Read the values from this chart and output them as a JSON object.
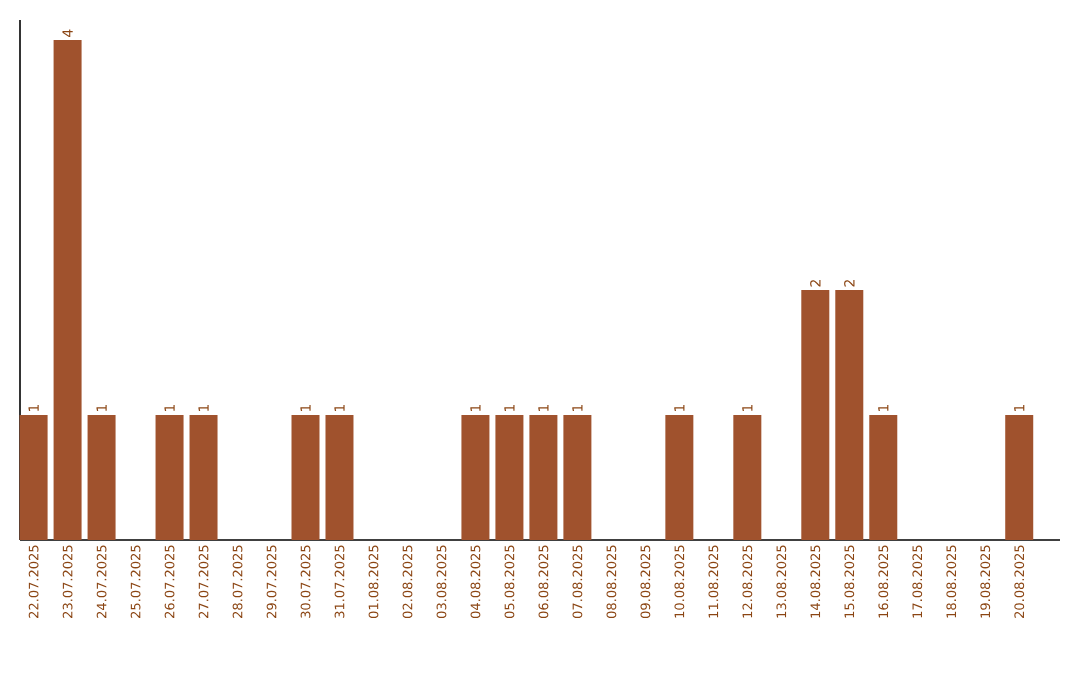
{
  "chart_data": {
    "type": "bar",
    "color": "#a0522d",
    "categories": [
      "22.07.2025",
      "23.07.2025",
      "24.07.2025",
      "25.07.2025",
      "26.07.2025",
      "27.07.2025",
      "28.07.2025",
      "29.07.2025",
      "30.07.2025",
      "31.07.2025",
      "01.08.2025",
      "02.08.2025",
      "03.08.2025",
      "04.08.2025",
      "05.08.2025",
      "06.08.2025",
      "07.08.2025",
      "08.08.2025",
      "09.08.2025",
      "10.08.2025",
      "11.08.2025",
      "12.08.2025",
      "13.08.2025",
      "14.08.2025",
      "15.08.2025",
      "16.08.2025",
      "17.08.2025",
      "18.08.2025",
      "19.08.2025",
      "20.08.2025"
    ],
    "values": [
      1,
      4,
      1,
      0,
      1,
      1,
      0,
      0,
      1,
      1,
      0,
      0,
      0,
      1,
      1,
      1,
      1,
      0,
      0,
      1,
      0,
      1,
      0,
      2,
      2,
      1,
      0,
      0,
      0,
      1
    ],
    "value_labels": [
      "1",
      "4",
      "1",
      null,
      "1",
      "1",
      null,
      null,
      "1",
      "1",
      null,
      null,
      null,
      "1",
      "1",
      "1",
      "1",
      null,
      null,
      "1",
      null,
      "1",
      null,
      "2",
      "2",
      "1",
      null,
      null,
      null,
      "1"
    ],
    "tick_labels": "x"
  }
}
